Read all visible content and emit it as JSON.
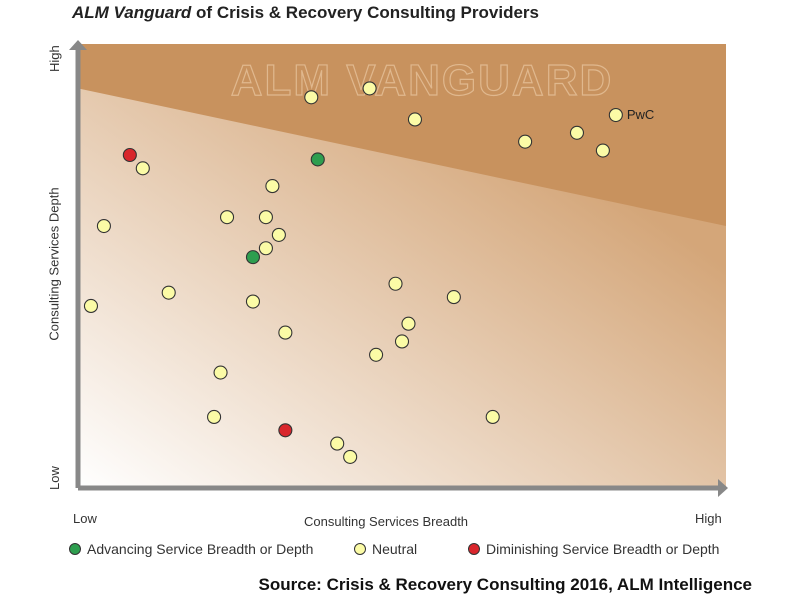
{
  "title": {
    "italic": "ALM Vanguard",
    "rest": " of Crisis & Recovery Consulting Providers"
  },
  "watermark": "ALM VANGUARD",
  "source": "Source: Crisis & Recovery Consulting 2016, ALM Intelligence",
  "colors": {
    "advancing": "#2e9e4f",
    "neutral": "#fbfba6",
    "diminishing": "#d9262c",
    "band": "#c8925e",
    "gradient_dark": "#d4a679",
    "gradient_light": "#ffffff",
    "axis": "#888888"
  },
  "legend": [
    {
      "key": "advancing",
      "label": "Advancing Service Breadth or Depth"
    },
    {
      "key": "neutral",
      "label": "Neutral"
    },
    {
      "key": "diminishing",
      "label": "Diminishing Service Breadth or Depth"
    }
  ],
  "chart_data": {
    "type": "scatter",
    "xlabel": "Consulting Services Breadth",
    "ylabel": "Consulting Services Depth",
    "x_tick_low": "Low",
    "x_tick_high": "High",
    "y_tick_low": "Low",
    "y_tick_high": "High",
    "xlim": [
      0,
      100
    ],
    "ylim": [
      0,
      100
    ],
    "grid": false,
    "legend_position": "bottom",
    "vanguard_band": {
      "left_y": 90,
      "right_y": 59
    },
    "points": [
      {
        "x": 36,
        "y": 88,
        "status": "neutral",
        "label": ""
      },
      {
        "x": 45,
        "y": 90,
        "status": "neutral",
        "label": ""
      },
      {
        "x": 52,
        "y": 83,
        "status": "neutral",
        "label": ""
      },
      {
        "x": 69,
        "y": 78,
        "status": "neutral",
        "label": ""
      },
      {
        "x": 77,
        "y": 80,
        "status": "neutral",
        "label": ""
      },
      {
        "x": 83,
        "y": 84,
        "status": "neutral",
        "label": "PwC"
      },
      {
        "x": 81,
        "y": 76,
        "status": "neutral",
        "label": ""
      },
      {
        "x": 37,
        "y": 74,
        "status": "advancing",
        "label": ""
      },
      {
        "x": 8,
        "y": 75,
        "status": "diminishing",
        "label": ""
      },
      {
        "x": 10,
        "y": 72,
        "status": "neutral",
        "label": ""
      },
      {
        "x": 30,
        "y": 68,
        "status": "neutral",
        "label": ""
      },
      {
        "x": 4,
        "y": 59,
        "status": "neutral",
        "label": ""
      },
      {
        "x": 23,
        "y": 61,
        "status": "neutral",
        "label": ""
      },
      {
        "x": 29,
        "y": 61,
        "status": "neutral",
        "label": ""
      },
      {
        "x": 31,
        "y": 57,
        "status": "neutral",
        "label": ""
      },
      {
        "x": 29,
        "y": 54,
        "status": "neutral",
        "label": ""
      },
      {
        "x": 27,
        "y": 52,
        "status": "advancing",
        "label": ""
      },
      {
        "x": 14,
        "y": 44,
        "status": "neutral",
        "label": ""
      },
      {
        "x": 27,
        "y": 42,
        "status": "neutral",
        "label": ""
      },
      {
        "x": 2,
        "y": 41,
        "status": "neutral",
        "label": ""
      },
      {
        "x": 49,
        "y": 46,
        "status": "neutral",
        "label": ""
      },
      {
        "x": 58,
        "y": 43,
        "status": "neutral",
        "label": ""
      },
      {
        "x": 51,
        "y": 37,
        "status": "neutral",
        "label": ""
      },
      {
        "x": 32,
        "y": 35,
        "status": "neutral",
        "label": ""
      },
      {
        "x": 50,
        "y": 33,
        "status": "neutral",
        "label": ""
      },
      {
        "x": 46,
        "y": 30,
        "status": "neutral",
        "label": ""
      },
      {
        "x": 22,
        "y": 26,
        "status": "neutral",
        "label": ""
      },
      {
        "x": 21,
        "y": 16,
        "status": "neutral",
        "label": ""
      },
      {
        "x": 64,
        "y": 16,
        "status": "neutral",
        "label": ""
      },
      {
        "x": 32,
        "y": 13,
        "status": "diminishing",
        "label": ""
      },
      {
        "x": 40,
        "y": 10,
        "status": "neutral",
        "label": ""
      },
      {
        "x": 42,
        "y": 7,
        "status": "neutral",
        "label": ""
      }
    ]
  }
}
